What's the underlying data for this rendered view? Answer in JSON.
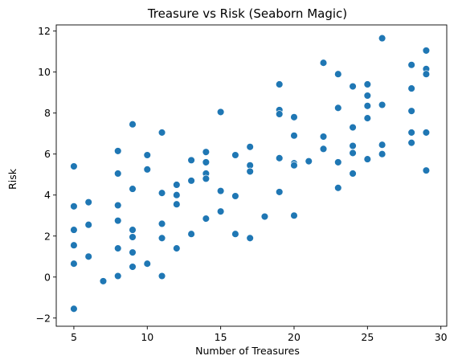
{
  "colors": {
    "point": "#1f77b4",
    "point_edge": "#ffffff",
    "axis": "#000000",
    "background": "#ffffff"
  },
  "chart_data": {
    "type": "scatter",
    "title": "Treasure vs Risk (Seaborn Magic)",
    "xlabel": "Number of Treasures",
    "ylabel": "Risk",
    "xlim": [
      3.8,
      30.4
    ],
    "ylim": [
      -2.4,
      12.3
    ],
    "xticks": [
      5,
      10,
      15,
      20,
      25,
      30
    ],
    "yticks": [
      -2,
      0,
      2,
      4,
      6,
      8,
      10,
      12
    ],
    "grid": false,
    "legend": null,
    "points": [
      [
        5,
        5.4
      ],
      [
        5,
        3.45
      ],
      [
        5,
        2.3
      ],
      [
        5,
        1.55
      ],
      [
        5,
        0.65
      ],
      [
        5,
        -1.55
      ],
      [
        6,
        3.65
      ],
      [
        6,
        2.55
      ],
      [
        6,
        1.0
      ],
      [
        7,
        -0.2
      ],
      [
        8,
        6.15
      ],
      [
        8,
        5.05
      ],
      [
        8,
        3.5
      ],
      [
        8,
        2.75
      ],
      [
        8,
        1.4
      ],
      [
        8,
        0.05
      ],
      [
        9,
        7.45
      ],
      [
        9,
        4.3
      ],
      [
        9,
        2.3
      ],
      [
        9,
        1.95
      ],
      [
        9,
        1.2
      ],
      [
        9,
        0.5
      ],
      [
        10,
        5.95
      ],
      [
        10,
        5.25
      ],
      [
        10,
        0.65
      ],
      [
        11,
        7.05
      ],
      [
        11,
        4.1
      ],
      [
        11,
        2.6
      ],
      [
        11,
        1.9
      ],
      [
        11,
        0.05
      ],
      [
        12,
        4.5
      ],
      [
        12,
        4.0
      ],
      [
        12,
        3.55
      ],
      [
        12,
        1.4
      ],
      [
        13,
        5.7
      ],
      [
        13,
        4.7
      ],
      [
        13,
        2.1
      ],
      [
        14,
        6.1
      ],
      [
        14,
        5.6
      ],
      [
        14,
        5.05
      ],
      [
        14,
        4.8
      ],
      [
        14,
        2.85
      ],
      [
        15,
        8.05
      ],
      [
        15,
        4.2
      ],
      [
        15,
        3.2
      ],
      [
        16,
        5.95
      ],
      [
        16,
        3.95
      ],
      [
        16,
        2.1
      ],
      [
        17,
        6.35
      ],
      [
        17,
        5.45
      ],
      [
        17,
        5.15
      ],
      [
        17,
        1.9
      ],
      [
        18,
        2.95
      ],
      [
        19,
        9.4
      ],
      [
        19,
        8.15
      ],
      [
        19,
        7.95
      ],
      [
        19,
        5.8
      ],
      [
        19,
        4.15
      ],
      [
        20,
        7.8
      ],
      [
        20,
        6.9
      ],
      [
        20,
        5.55
      ],
      [
        20,
        5.45
      ],
      [
        20,
        3.0
      ],
      [
        21,
        5.65
      ],
      [
        22,
        10.45
      ],
      [
        22,
        6.85
      ],
      [
        22,
        6.25
      ],
      [
        23,
        9.9
      ],
      [
        23,
        8.25
      ],
      [
        23,
        5.6
      ],
      [
        23,
        4.35
      ],
      [
        24,
        9.3
      ],
      [
        24,
        7.3
      ],
      [
        24,
        6.4
      ],
      [
        24,
        6.05
      ],
      [
        24,
        5.05
      ],
      [
        25,
        9.4
      ],
      [
        25,
        8.85
      ],
      [
        25,
        8.35
      ],
      [
        25,
        7.75
      ],
      [
        25,
        5.75
      ],
      [
        26,
        11.65
      ],
      [
        26,
        8.4
      ],
      [
        26,
        6.45
      ],
      [
        26,
        6.0
      ],
      [
        28,
        10.35
      ],
      [
        28,
        9.2
      ],
      [
        28,
        8.1
      ],
      [
        28,
        7.05
      ],
      [
        28,
        6.55
      ],
      [
        29,
        11.05
      ],
      [
        29,
        10.15
      ],
      [
        29,
        9.9
      ],
      [
        29,
        7.05
      ],
      [
        29,
        5.2
      ]
    ]
  }
}
